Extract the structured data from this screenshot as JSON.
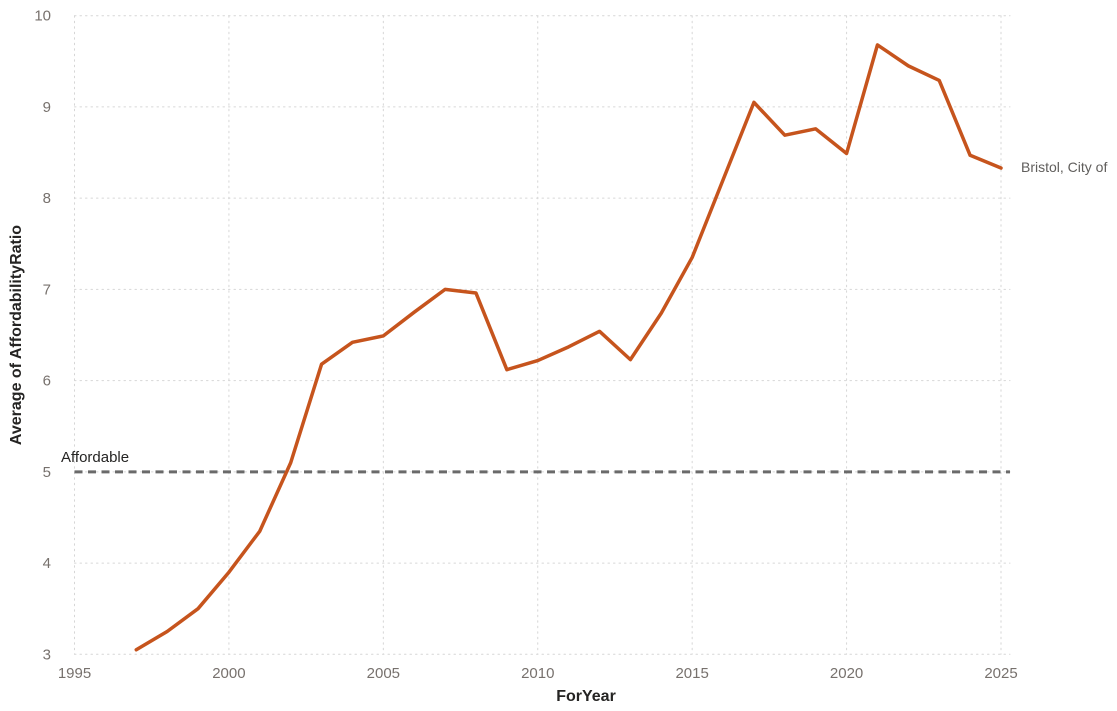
{
  "chart_data": {
    "type": "line",
    "xlabel": "ForYear",
    "ylabel": "Average of AffordabilityRatio",
    "x_ticks": [
      1995,
      2000,
      2005,
      2010,
      2015,
      2020,
      2025
    ],
    "y_ticks": [
      3,
      4,
      5,
      6,
      7,
      8,
      9,
      10
    ],
    "xlim": [
      1995,
      2025
    ],
    "ylim": [
      3,
      10
    ],
    "grid": "dotted",
    "legend_position": "end-of-line",
    "x": [
      1997,
      1998,
      1999,
      2000,
      2001,
      2002,
      2003,
      2004,
      2005,
      2006,
      2007,
      2008,
      2009,
      2010,
      2011,
      2012,
      2013,
      2014,
      2015,
      2016,
      2017,
      2018,
      2019,
      2020,
      2021,
      2022,
      2023,
      2024,
      2025
    ],
    "series": [
      {
        "name": "Bristol, City of",
        "values": [
          3.05,
          3.25,
          3.5,
          3.9,
          4.35,
          5.1,
          6.18,
          6.42,
          6.49,
          6.75,
          7.0,
          6.96,
          6.12,
          6.22,
          6.37,
          6.54,
          6.23,
          6.74,
          7.35,
          8.2,
          9.05,
          8.69,
          8.76,
          8.49,
          9.68,
          9.45,
          9.29,
          8.47,
          8.33
        ],
        "color": "#C6541D"
      }
    ],
    "reference_line": {
      "label": "Affordable",
      "value": 5,
      "color": "#6A6A6A",
      "style": "dashed"
    },
    "colors": {
      "gridline": "#D6D6D6",
      "tick_label": "#77716D",
      "axis_title": "#252423",
      "series_end_label": "#605E5C",
      "background": "#FFFFFF"
    }
  },
  "labels": {
    "y_axis_title": "Average of AffordabilityRatio",
    "x_axis_title": "ForYear",
    "reference_line": "Affordable",
    "series_end": "Bristol, City of"
  }
}
